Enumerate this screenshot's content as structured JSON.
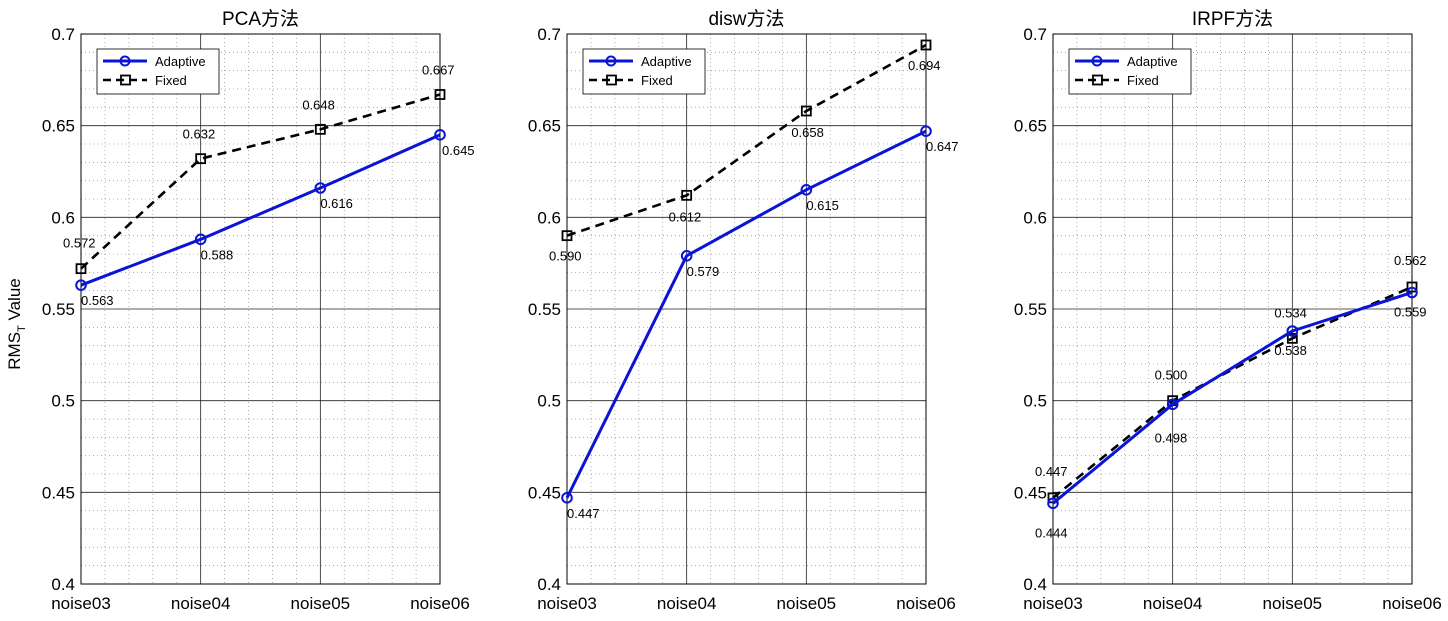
{
  "figure": {
    "ylabel_main": "RMS",
    "ylabel_sub": "T",
    "ylabel_tail": " Value"
  },
  "colors": {
    "adaptive": "#0a14d6",
    "fixed": "#000000"
  },
  "chart_data": [
    {
      "type": "line",
      "title": "PCA方法",
      "categories": [
        "noise03",
        "noise04",
        "noise05",
        "noise06"
      ],
      "ylim": [
        0.4,
        0.7
      ],
      "yticks": [
        0.4,
        0.45,
        0.5,
        0.55,
        0.6,
        0.65,
        0.7
      ],
      "ytick_labels": [
        "0.4",
        "0.45",
        "0.5",
        "0.55",
        "0.6",
        "0.65",
        "0.7"
      ],
      "grid": true,
      "minor_grid": true,
      "legend_position": "top-left",
      "series": [
        {
          "name": "Adaptive",
          "values": [
            0.563,
            0.588,
            0.616,
            0.645
          ],
          "labels": [
            "0.563",
            "0.588",
            "0.616",
            "0.645"
          ]
        },
        {
          "name": "Fixed",
          "values": [
            0.572,
            0.632,
            0.648,
            0.667
          ],
          "labels": [
            "0.572",
            "0.632",
            "0.648",
            "0.667"
          ]
        }
      ]
    },
    {
      "type": "line",
      "title": "disw方法",
      "categories": [
        "noise03",
        "noise04",
        "noise05",
        "noise06"
      ],
      "ylim": [
        0.4,
        0.7
      ],
      "yticks": [
        0.4,
        0.45,
        0.5,
        0.55,
        0.6,
        0.65,
        0.7
      ],
      "ytick_labels": [
        "0.4",
        "0.45",
        "0.5",
        "0.55",
        "0.6",
        "0.65",
        "0.7"
      ],
      "grid": true,
      "minor_grid": true,
      "legend_position": "top-left",
      "series": [
        {
          "name": "Adaptive",
          "values": [
            0.447,
            0.579,
            0.615,
            0.647
          ],
          "labels": [
            "0.447",
            "0.579",
            "0.615",
            "0.647"
          ]
        },
        {
          "name": "Fixed",
          "values": [
            0.59,
            0.612,
            0.658,
            0.694
          ],
          "labels": [
            "0.590",
            "0.612",
            "0.658",
            "0.694"
          ]
        }
      ]
    },
    {
      "type": "line",
      "title": "IRPF方法",
      "categories": [
        "noise03",
        "noise04",
        "noise05",
        "noise06"
      ],
      "ylim": [
        0.4,
        0.7
      ],
      "yticks": [
        0.4,
        0.45,
        0.5,
        0.55,
        0.6,
        0.65,
        0.7
      ],
      "ytick_labels": [
        "0.4",
        "0.45",
        "0.5",
        "0.55",
        "0.6",
        "0.65",
        "0.7"
      ],
      "grid": true,
      "minor_grid": true,
      "legend_position": "top-left",
      "series": [
        {
          "name": "Adaptive",
          "values": [
            0.444,
            0.498,
            0.538,
            0.559
          ],
          "labels": [
            "0.444",
            "0.498",
            "0.538",
            "0.559"
          ]
        },
        {
          "name": "Fixed",
          "values": [
            0.447,
            0.5,
            0.534,
            0.562
          ],
          "labels": [
            "0.447",
            "0.500",
            "0.534",
            "0.562"
          ]
        }
      ]
    }
  ]
}
